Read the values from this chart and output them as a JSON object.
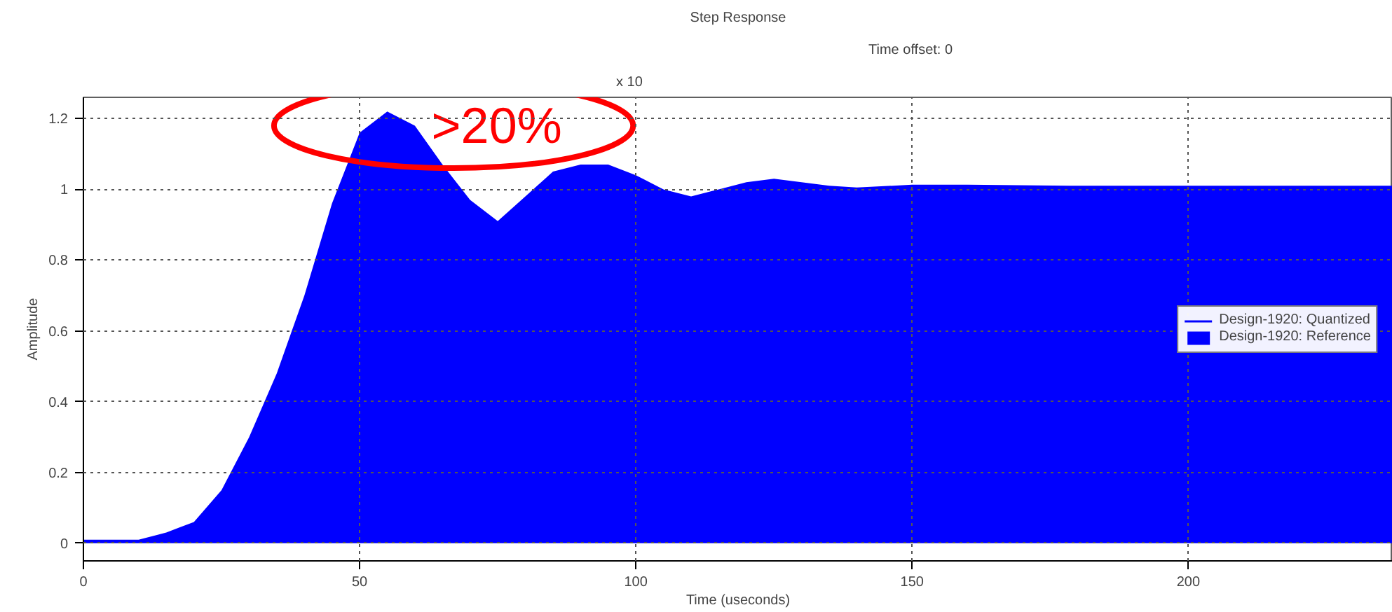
{
  "chart_data": {
    "type": "area",
    "title": "Step Response",
    "xlabel": "Time (useconds)",
    "ylabel": "Amplitude",
    "x": [
      0,
      10,
      15,
      20,
      25,
      30,
      35,
      40,
      45,
      50,
      55,
      60,
      65,
      70,
      75,
      80,
      85,
      90,
      95,
      100,
      105,
      110,
      115,
      120,
      125,
      130,
      135,
      140,
      150,
      160,
      180,
      237
    ],
    "series": [
      {
        "name": "Design-1920: Quantized",
        "type": "line",
        "color": "#0000ff",
        "values": [
          null,
          null,
          null,
          null,
          null,
          null,
          null,
          null,
          null,
          null,
          null,
          null,
          null,
          null,
          null,
          null,
          null,
          null,
          null,
          null,
          null,
          null,
          null,
          null,
          null,
          null,
          null,
          null,
          null,
          null,
          null,
          null
        ]
      },
      {
        "name": "Design-1920: Reference",
        "color": "#0000ff",
        "values": [
          0.01,
          0.01,
          0.03,
          0.06,
          0.15,
          0.3,
          0.48,
          0.7,
          0.96,
          1.16,
          1.22,
          1.18,
          1.07,
          0.97,
          0.91,
          0.98,
          1.05,
          1.07,
          1.07,
          1.04,
          1.0,
          0.98,
          1.0,
          1.02,
          1.03,
          1.02,
          1.01,
          1.005,
          1.013,
          1.013,
          1.01,
          1.01
        ]
      }
    ],
    "xlim": [
      0,
      237
    ],
    "ylim": [
      -0.05,
      1.26
    ],
    "xticks": [
      0,
      50,
      100,
      150,
      200
    ],
    "yticks": [
      0,
      0.2,
      0.4,
      0.6,
      0.8,
      1,
      1.2
    ],
    "grid": true,
    "legend": "right",
    "annotations": [
      {
        "text": ">20%",
        "x": 55,
        "y": 1.22
      },
      "x 10",
      "Time offset:  0"
    ]
  }
}
